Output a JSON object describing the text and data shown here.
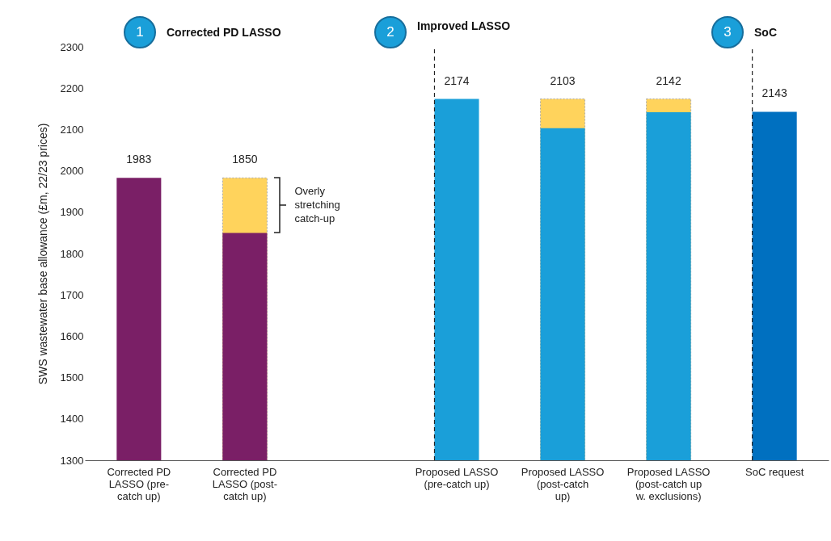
{
  "chart_data": {
    "type": "bar",
    "ylabel": "SWS wastewater base allowance (£m, 22/23 prices)",
    "categories": [
      "Corrected PD LASSO (pre-catch up)",
      "Corrected PD LASSO (post-catch up)",
      null,
      "Proposed LASSO (pre-catch up)",
      "Proposed LASSO (post-catch up)",
      "Proposed LASSO (post-catch up w. exclusions)",
      "SoC request"
    ],
    "series": [
      {
        "color": "#ffd35c",
        "values": [
          null,
          1983,
          null,
          null,
          2174,
          2174,
          null
        ]
      },
      {
        "color": "#7a1f66",
        "values": [
          1983,
          1850,
          null,
          null,
          null,
          null,
          null
        ],
        "value_labels": [
          "1983",
          null,
          null,
          null,
          null,
          null,
          null
        ]
      },
      {
        "color": "#1a9fd9",
        "values": [
          null,
          null,
          null,
          2174,
          2103,
          2142,
          null
        ],
        "value_labels": [
          null,
          null,
          null,
          "2174",
          null,
          null,
          null
        ]
      },
      {
        "color": "#0070c0",
        "values": [
          null,
          null,
          null,
          null,
          null,
          null,
          2143
        ],
        "value_labels": [
          null,
          null,
          null,
          null,
          null,
          null,
          "2143"
        ]
      }
    ],
    "ylim": [
      1300,
      2300
    ],
    "yticks": [
      1300,
      1400,
      1500,
      1600,
      1700,
      1800,
      1900,
      2000,
      2100,
      2200,
      2300
    ],
    "grid": false,
    "ref_lines": [
      {
        "axis": "x",
        "value": "Proposed LASSO (pre-catch up)",
        "line_style": "dashed",
        "color": "#222222"
      },
      {
        "axis": "x",
        "value": "SoC request",
        "line_style": "dashed",
        "color": "#222222"
      }
    ],
    "annotations": [
      "1",
      "Corrected PD LASSO",
      "2",
      "Improved LASSO",
      "3",
      "SoC",
      "Overly stretching catch-up",
      {
        "text": "1850",
        "x": "Corrected PD LASSO (post-catch up)",
        "y": 1983
      },
      {
        "text": "2103",
        "x": "Proposed LASSO (post-catch up)",
        "y": 2174
      },
      {
        "text": "2142",
        "x": "Proposed LASSO (post-catch up w. exclusions)",
        "y": 2174
      }
    ]
  }
}
